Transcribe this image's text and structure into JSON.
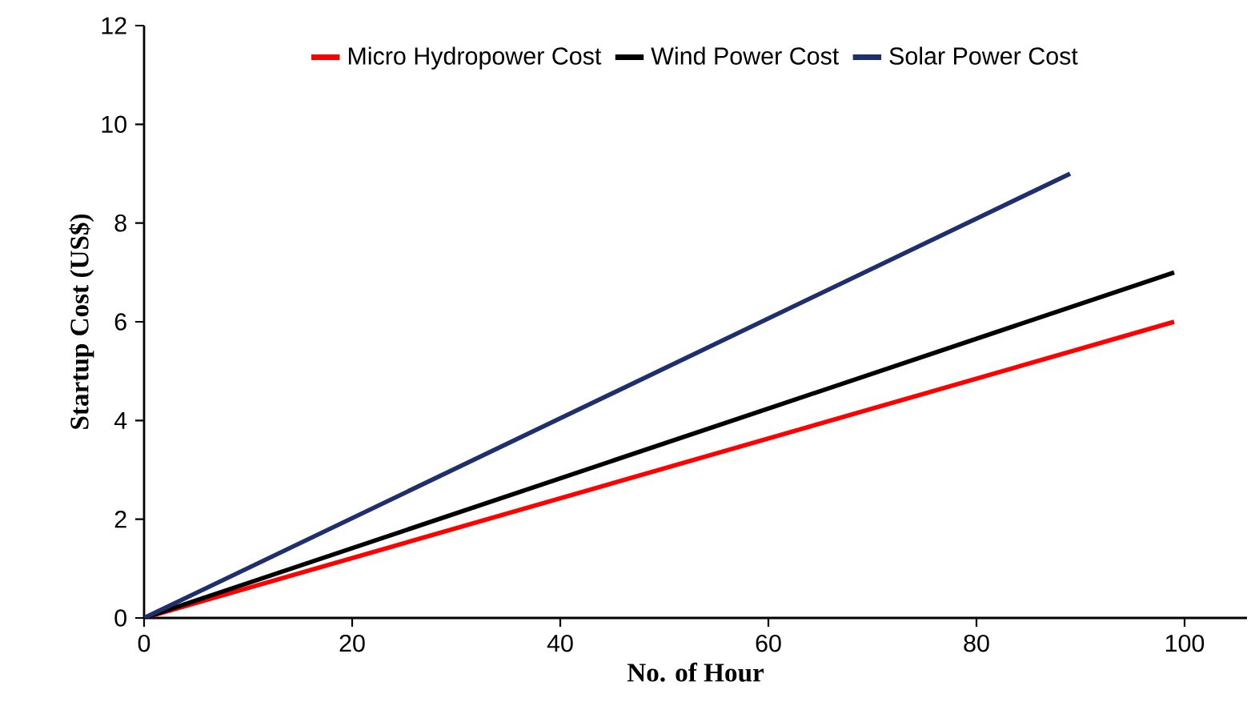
{
  "chart_data": {
    "type": "line",
    "xlabel": "No. of Hour",
    "ylabel": "Startup Cost (US$)",
    "xlim": [
      0,
      106
    ],
    "ylim": [
      0,
      12
    ],
    "xticks": [
      0,
      20,
      40,
      60,
      80,
      100
    ],
    "yticks": [
      0,
      2,
      4,
      6,
      8,
      10,
      12
    ],
    "legend": "top",
    "grid": false,
    "marker": "none",
    "line_style": "solid",
    "series": [
      {
        "name": "Micro Hydropower Cost",
        "color": "#ff0000",
        "x": [
          0,
          99
        ],
        "values": [
          0,
          6
        ]
      },
      {
        "name": "Wind Power Cost",
        "color": "#000000",
        "x": [
          0,
          99
        ],
        "values": [
          0,
          7
        ]
      },
      {
        "name": "Solar Power Cost",
        "color": "#1f2f6b",
        "x": [
          0,
          89
        ],
        "values": [
          0,
          9
        ]
      }
    ]
  }
}
